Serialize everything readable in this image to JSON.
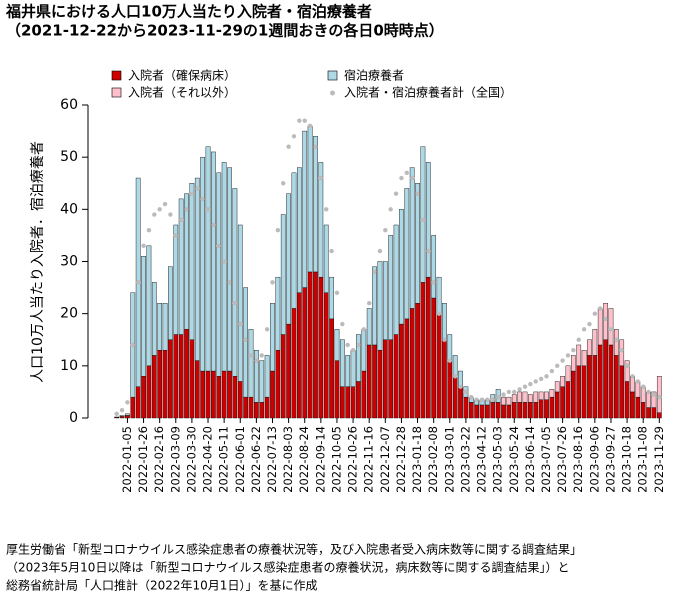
{
  "chart_data": {
    "type": "bar",
    "title": "福井県における人口10万人当たり入院者・宿泊療養者",
    "subtitle": "（2021-12-22から2023-11-29の1週間おきの各日0時時点）",
    "y_label": "人口10万人当たり入院者．宿泊療養者",
    "source": [
      "厚生労働省「新型コロナウイルス感染症患者の療養状況等，及び入院患者受入病床数等に関する調査結果」",
      "（2023年5月10日以降は「新型コロナウイルス感染症患者の療養状況，病床数等に関する調査結果」）と",
      "総務省統計局「人口推計（2022年10月1日）」を基に作成"
    ],
    "categories": [
      null,
      null,
      "2022-01-05",
      null,
      null,
      "2022-01-26",
      null,
      null,
      "2022-02-16",
      null,
      null,
      "2022-03-09",
      null,
      null,
      "2022-03-30",
      null,
      null,
      "2022-04-20",
      null,
      null,
      "2022-05-11",
      null,
      null,
      "2022-06-01",
      null,
      null,
      "2022-06-22",
      null,
      null,
      "2022-07-13",
      null,
      null,
      "2022-08-03",
      null,
      null,
      "2022-08-24",
      null,
      null,
      "2022-09-14",
      null,
      null,
      "2022-10-05",
      null,
      null,
      "2022-10-26",
      null,
      null,
      "2022-11-16",
      null,
      null,
      "2022-12-07",
      null,
      null,
      "2022-12-28",
      null,
      null,
      "2023-01-18",
      null,
      null,
      "2023-02-08",
      null,
      null,
      "2023-03-01",
      null,
      null,
      "2023-03-22",
      null,
      null,
      "2023-04-12",
      null,
      null,
      "2023-05-03",
      null,
      null,
      "2023-05-24",
      null,
      null,
      "2023-06-14",
      null,
      null,
      "2023-07-05",
      null,
      null,
      "2023-07-26",
      null,
      null,
      "2023-08-16",
      null,
      null,
      "2023-09-06",
      null,
      null,
      "2023-09-27",
      null,
      null,
      "2023-10-18",
      null,
      null,
      "2023-11-08",
      null,
      null,
      "2023-11-29"
    ],
    "series": [
      {
        "name": "入院者（確保病床）",
        "color": "#cc0000",
        "kind": "bar",
        "values": [
          0.1,
          0.3,
          0.5,
          4,
          6,
          8,
          10,
          12,
          13,
          13,
          15,
          16,
          16,
          17,
          15,
          11,
          9,
          9,
          9,
          8,
          9,
          9,
          8,
          7,
          4,
          4,
          3,
          3,
          4,
          9,
          13,
          16,
          18,
          21,
          24,
          25,
          28,
          28,
          27,
          24,
          19,
          11,
          6,
          6,
          6,
          7,
          9,
          14,
          14,
          13,
          15,
          15,
          16,
          18,
          19,
          21,
          22,
          26,
          27,
          23,
          20,
          15,
          11,
          8,
          6,
          4,
          3,
          2.5,
          2.5,
          2.5,
          3,
          3,
          2.5,
          2.5,
          3,
          3,
          3,
          3,
          3,
          3.5,
          3.5,
          4,
          5,
          6,
          7,
          9,
          10,
          10,
          12,
          12,
          14,
          15,
          14,
          12,
          10,
          7,
          5,
          4,
          3,
          2,
          2,
          1
        ]
      },
      {
        "name": "宿泊療養者",
        "color": "#add8e6",
        "kind": "bar",
        "values": [
          0.1,
          0.2,
          0.3,
          20,
          40,
          23,
          23,
          14,
          9,
          9,
          14,
          21,
          26,
          26,
          30,
          35,
          41,
          43,
          42,
          39,
          40,
          39,
          36,
          30,
          21,
          13,
          10,
          8,
          8,
          13,
          14,
          23,
          25,
          26,
          24,
          30,
          28,
          26,
          22,
          13,
          8,
          6,
          9,
          6,
          7,
          9,
          8,
          7,
          15,
          17,
          15,
          20,
          21,
          22,
          25,
          27,
          23,
          26,
          22,
          12,
          7,
          7,
          5,
          4,
          3,
          2,
          1,
          1,
          1,
          1,
          1.5,
          2.5,
          null,
          null,
          null,
          null,
          null,
          null,
          null,
          null,
          null,
          null,
          null,
          null,
          null,
          null,
          null,
          null,
          null,
          null,
          null,
          null,
          null,
          null,
          null,
          null,
          null,
          null,
          null,
          null,
          null,
          null
        ]
      },
      {
        "name": "入院者（それ以外）",
        "color": "#ffc0cb",
        "kind": "bar",
        "values": [
          null,
          null,
          null,
          null,
          null,
          null,
          null,
          null,
          null,
          null,
          null,
          null,
          null,
          null,
          null,
          null,
          null,
          null,
          null,
          null,
          null,
          null,
          null,
          null,
          null,
          null,
          null,
          null,
          null,
          null,
          null,
          null,
          null,
          null,
          null,
          null,
          null,
          null,
          null,
          null,
          null,
          null,
          null,
          null,
          null,
          null,
          null,
          null,
          null,
          null,
          null,
          null,
          null,
          null,
          null,
          null,
          null,
          null,
          null,
          null,
          null,
          null,
          null,
          null,
          null,
          null,
          null,
          null,
          null,
          null,
          null,
          null,
          1.5,
          1.5,
          1.5,
          2,
          2,
          1.5,
          2,
          1.5,
          1.5,
          1.5,
          2,
          2,
          3,
          3,
          4,
          3,
          3,
          5,
          7,
          7,
          7,
          5,
          5,
          4,
          3,
          3,
          3,
          3,
          3,
          7
        ]
      },
      {
        "name": "入院者・宿泊療養者計（全国）",
        "color": "#bbbbbb",
        "kind": "point",
        "values": [
          0.8,
          1.5,
          3,
          14,
          26,
          33,
          36,
          39,
          40,
          41,
          39,
          35,
          38,
          40,
          43,
          44,
          42,
          40,
          37,
          33,
          30,
          26,
          22,
          18,
          15,
          12,
          11,
          12,
          17,
          26,
          36,
          45,
          52,
          54,
          57,
          57,
          56,
          52,
          46,
          40,
          32,
          24,
          18,
          14,
          13,
          14,
          17,
          22,
          28,
          32,
          36,
          40,
          43,
          46,
          47,
          46,
          43,
          38,
          32,
          26,
          20,
          15,
          11,
          8,
          6,
          5,
          4,
          3.5,
          3.5,
          3.5,
          3.5,
          4,
          4.5,
          5,
          5,
          5.5,
          6,
          6.5,
          7,
          7.5,
          8,
          9,
          10,
          11,
          12,
          13,
          15,
          17,
          18,
          20,
          21,
          19,
          17,
          15,
          13,
          10,
          8,
          7,
          6,
          5,
          4.5,
          4
        ]
      }
    ],
    "ylim": [
      0,
      60
    ],
    "yticks": [
      0,
      10,
      20,
      30,
      40,
      50,
      60
    ]
  }
}
